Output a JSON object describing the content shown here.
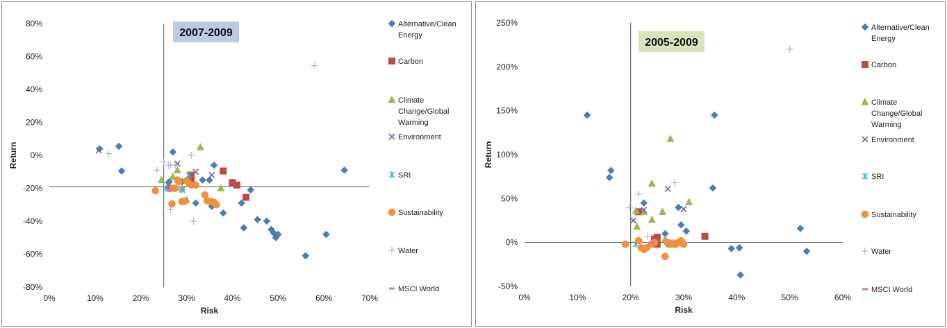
{
  "colors": {
    "Alternative/Clean Energy": "#4a7ebb",
    "Carbon": "#be4b48",
    "Climate Change/Global Warming": "#98b954",
    "Environment": "#7d60a0",
    "SRI": "#46aac5",
    "Sustainability": "#f0913d",
    "Water": "#a5b6d8",
    "MSCI World": "#e07a9a"
  },
  "chart_data": [
    {
      "type": "scatter",
      "title": "2007-2009",
      "title_bg": "#b8cce4",
      "xlabel": "Risk",
      "ylabel": "Return",
      "xlim": [
        0,
        0.7
      ],
      "ylim": [
        -0.8,
        0.8
      ],
      "xticks": [
        "0%",
        "10%",
        "20%",
        "30%",
        "40%",
        "50%",
        "60%",
        "70%"
      ],
      "xtick_values": [
        0,
        0.1,
        0.2,
        0.3,
        0.4,
        0.5,
        0.6,
        0.7
      ],
      "yticks": [
        "80%",
        "60%",
        "40%",
        "20%",
        "0%",
        "-20%",
        "-40%",
        "-60%",
        "-80%"
      ],
      "ytick_values": [
        0.8,
        0.6,
        0.4,
        0.2,
        0,
        -0.2,
        -0.4,
        -0.6,
        -0.8
      ],
      "crosshair": {
        "x": 0.25,
        "y": -0.19
      },
      "legend_position": "right",
      "series": [
        {
          "name": "Alternative/Clean Energy",
          "marker": "diamond",
          "points": [
            [
              0.11,
              0.04
            ],
            [
              0.152,
              0.055
            ],
            [
              0.158,
              -0.095
            ],
            [
              0.27,
              0.02
            ],
            [
              0.262,
              -0.16
            ],
            [
              0.29,
              -0.16
            ],
            [
              0.31,
              -0.12
            ],
            [
              0.32,
              -0.29
            ],
            [
              0.335,
              -0.15
            ],
            [
              0.35,
              -0.15
            ],
            [
              0.355,
              -0.31
            ],
            [
              0.36,
              -0.06
            ],
            [
              0.38,
              -0.35
            ],
            [
              0.42,
              -0.29
            ],
            [
              0.425,
              -0.44
            ],
            [
              0.44,
              -0.21
            ],
            [
              0.455,
              -0.39
            ],
            [
              0.475,
              -0.4
            ],
            [
              0.485,
              -0.45
            ],
            [
              0.49,
              -0.47
            ],
            [
              0.495,
              -0.5
            ],
            [
              0.5,
              -0.48
            ],
            [
              0.56,
              -0.61
            ],
            [
              0.605,
              -0.48
            ],
            [
              0.645,
              -0.09
            ]
          ]
        },
        {
          "name": "Carbon",
          "marker": "square",
          "points": [
            [
              0.265,
              -0.2
            ],
            [
              0.31,
              -0.15
            ],
            [
              0.31,
              -0.12
            ],
            [
              0.38,
              -0.095
            ],
            [
              0.4,
              -0.165
            ],
            [
              0.41,
              -0.18
            ],
            [
              0.43,
              -0.255
            ]
          ]
        },
        {
          "name": "Climate Change/Global Warming",
          "marker": "triangle",
          "points": [
            [
              0.245,
              -0.15
            ],
            [
              0.27,
              -0.13
            ],
            [
              0.28,
              -0.09
            ],
            [
              0.29,
              -0.2
            ],
            [
              0.3,
              -0.27
            ],
            [
              0.33,
              0.05
            ],
            [
              0.375,
              -0.2
            ]
          ]
        },
        {
          "name": "Environment",
          "marker": "x",
          "points": [
            [
              0.108,
              0.03
            ],
            [
              0.26,
              -0.18
            ],
            [
              0.28,
              -0.05
            ],
            [
              0.32,
              -0.1
            ],
            [
              0.355,
              -0.12
            ]
          ]
        },
        {
          "name": "SRI",
          "marker": "asterisk",
          "points": [
            [
              0.255,
              -0.2
            ],
            [
              0.29,
              -0.21
            ],
            [
              0.305,
              -0.12
            ]
          ]
        },
        {
          "name": "Sustainability",
          "marker": "circle",
          "points": [
            [
              0.232,
              -0.215
            ],
            [
              0.268,
              -0.295
            ],
            [
              0.27,
              -0.2
            ],
            [
              0.275,
              -0.2
            ],
            [
              0.28,
              -0.15
            ],
            [
              0.283,
              -0.16
            ],
            [
              0.29,
              -0.28
            ],
            [
              0.295,
              -0.28
            ],
            [
              0.3,
              -0.155
            ],
            [
              0.305,
              -0.17
            ],
            [
              0.31,
              -0.18
            ],
            [
              0.32,
              -0.18
            ],
            [
              0.34,
              -0.24
            ],
            [
              0.345,
              -0.275
            ],
            [
              0.35,
              -0.28
            ],
            [
              0.355,
              -0.28
            ],
            [
              0.36,
              -0.285
            ],
            [
              0.365,
              -0.3
            ]
          ]
        },
        {
          "name": "Water",
          "marker": "plus",
          "points": [
            [
              0.13,
              0.01
            ],
            [
              0.235,
              -0.09
            ],
            [
              0.25,
              -0.04
            ],
            [
              0.26,
              -0.06
            ],
            [
              0.265,
              -0.06
            ],
            [
              0.265,
              -0.33
            ],
            [
              0.275,
              -0.06
            ],
            [
              0.285,
              -0.2
            ],
            [
              0.31,
              0.0
            ],
            [
              0.315,
              -0.4
            ],
            [
              0.58,
              0.545
            ]
          ]
        },
        {
          "name": "MSCI World",
          "marker": "dash",
          "points": [
            [
              0.265,
              -0.21
            ]
          ]
        }
      ]
    },
    {
      "type": "scatter",
      "title": "2005-2009",
      "title_bg": "#d7e4bd",
      "xlabel": "Risk",
      "ylabel": "Return",
      "xlim": [
        0,
        0.6
      ],
      "ylim": [
        -0.5,
        2.5
      ],
      "xticks": [
        "0%",
        "10%",
        "20%",
        "30%",
        "40%",
        "50%",
        "60%"
      ],
      "xtick_values": [
        0,
        0.1,
        0.2,
        0.3,
        0.4,
        0.5,
        0.6
      ],
      "yticks": [
        "250%",
        "200%",
        "150%",
        "100%",
        "50%",
        "0%",
        "-50%"
      ],
      "ytick_values": [
        2.5,
        2.0,
        1.5,
        1.0,
        0.5,
        0,
        -0.5
      ],
      "crosshair": {
        "x": 0.2,
        "y": 0.0
      },
      "legend_position": "right",
      "series": [
        {
          "name": "Alternative/Clean Energy",
          "marker": "diamond",
          "points": [
            [
              0.118,
              1.45
            ],
            [
              0.16,
              0.74
            ],
            [
              0.163,
              0.82
            ],
            [
              0.225,
              0.45
            ],
            [
              0.265,
              0.1
            ],
            [
              0.27,
              -0.02
            ],
            [
              0.29,
              0.4
            ],
            [
              0.295,
              0.2
            ],
            [
              0.305,
              0.13
            ],
            [
              0.355,
              0.62
            ],
            [
              0.358,
              1.45
            ],
            [
              0.39,
              -0.07
            ],
            [
              0.405,
              -0.06
            ],
            [
              0.407,
              -0.37
            ],
            [
              0.52,
              0.16
            ],
            [
              0.532,
              -0.1
            ]
          ]
        },
        {
          "name": "Carbon",
          "marker": "square",
          "points": [
            [
              0.215,
              0.35
            ],
            [
              0.245,
              0.04
            ],
            [
              0.25,
              0.06
            ],
            [
              0.25,
              -0.02
            ],
            [
              0.34,
              0.07
            ]
          ]
        },
        {
          "name": "Climate Change/Global Warming",
          "marker": "triangle",
          "points": [
            [
              0.21,
              0.36
            ],
            [
              0.212,
              0.18
            ],
            [
              0.225,
              0.35
            ],
            [
              0.24,
              0.26
            ],
            [
              0.24,
              0.67
            ],
            [
              0.26,
              0.35
            ],
            [
              0.265,
              0.04
            ],
            [
              0.275,
              1.18
            ],
            [
              0.31,
              0.46
            ]
          ]
        },
        {
          "name": "Environment",
          "marker": "x",
          "points": [
            [
              0.205,
              0.25
            ],
            [
              0.225,
              0.37
            ],
            [
              0.27,
              0.61
            ],
            [
              0.3,
              0.38
            ]
          ]
        },
        {
          "name": "SRI",
          "marker": "asterisk",
          "points": [
            [
              0.21,
              -0.02
            ],
            [
              0.28,
              0.0
            ]
          ]
        },
        {
          "name": "Sustainability",
          "marker": "circle",
          "points": [
            [
              0.19,
              -0.02
            ],
            [
              0.215,
              0.02
            ],
            [
              0.22,
              -0.06
            ],
            [
              0.225,
              -0.08
            ],
            [
              0.23,
              -0.06
            ],
            [
              0.24,
              -0.02
            ],
            [
              0.245,
              0.0
            ],
            [
              0.265,
              -0.16
            ],
            [
              0.27,
              0.0
            ],
            [
              0.275,
              -0.02
            ],
            [
              0.28,
              -0.02
            ],
            [
              0.285,
              -0.02
            ],
            [
              0.29,
              0.0
            ],
            [
              0.295,
              0.02
            ],
            [
              0.3,
              -0.02
            ]
          ]
        },
        {
          "name": "Water",
          "marker": "plus",
          "points": [
            [
              0.198,
              0.4
            ],
            [
              0.215,
              0.55
            ],
            [
              0.232,
              0.07
            ],
            [
              0.283,
              0.68
            ],
            [
              0.5,
              2.2
            ]
          ]
        },
        {
          "name": "MSCI World",
          "marker": "dash",
          "points": [
            [
              0.24,
              0.0
            ]
          ]
        }
      ]
    }
  ]
}
